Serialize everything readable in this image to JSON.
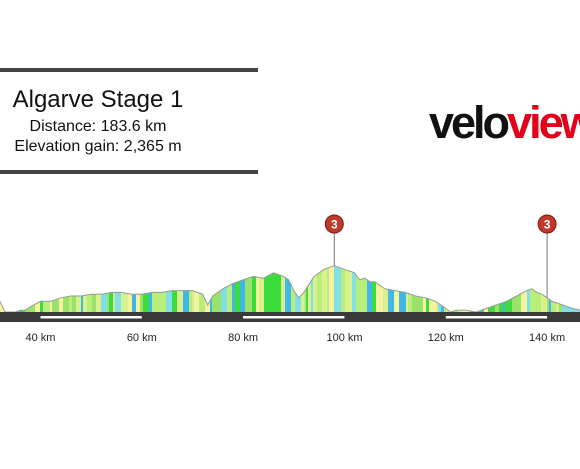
{
  "stage": {
    "title": "Algarve Stage 1",
    "distance": "Distance: 183.6 km",
    "elevation": "Elevation gain: 2,365 m"
  },
  "brand": {
    "part1": "velo",
    "part2": "view",
    "color_dark": "#111111",
    "color_red": "#e3001b"
  },
  "chart_data": {
    "type": "area",
    "title": "",
    "xlabel": "",
    "ylabel": "",
    "x_ticks": [
      40,
      60,
      80,
      100,
      120,
      140
    ],
    "x_tick_labels": [
      "40 km",
      "60 km",
      "80 km",
      "100 km",
      "120 km",
      "140 km"
    ],
    "xlim": [
      32,
      146.5
    ],
    "elevation_profile": {
      "x": [
        32,
        33,
        35,
        36,
        37,
        38,
        40,
        42,
        44,
        46,
        48,
        50,
        52,
        54,
        56,
        58,
        60,
        62,
        64,
        66,
        68,
        70,
        72,
        73,
        74,
        76,
        78,
        80,
        82,
        84,
        86,
        88,
        89,
        90,
        91,
        92,
        94,
        96,
        98,
        100,
        102,
        103,
        104,
        105,
        106,
        107,
        108,
        110,
        112,
        114,
        116,
        118,
        120,
        121,
        122,
        124,
        126,
        128,
        130,
        132,
        134,
        136,
        137,
        138,
        139,
        140,
        141,
        142,
        143,
        144,
        145,
        146.5
      ],
      "y": [
        6,
        0,
        0,
        1,
        1,
        3,
        6,
        6,
        8,
        9,
        9,
        10,
        10,
        11,
        11,
        10,
        10,
        11,
        11,
        12,
        12,
        12,
        10,
        4,
        9,
        13,
        16,
        18,
        20,
        19,
        22,
        20,
        18,
        12,
        8,
        11,
        20,
        24,
        26,
        24,
        22,
        18,
        19,
        17,
        17,
        15,
        13,
        12,
        11,
        9,
        8,
        6,
        2,
        0,
        1,
        1,
        0,
        2,
        4,
        6,
        9,
        12,
        13,
        11,
        10,
        8,
        6,
        5,
        4,
        3,
        2,
        1
      ],
      "ylim": [
        0,
        32
      ]
    },
    "climbs": [
      {
        "label": "3",
        "x": 98,
        "category_color": "#c0392b"
      },
      {
        "label": "3",
        "x": 140,
        "category_color": "#c0392b"
      }
    ],
    "gradient_colors": [
      "#3ddc3d",
      "#9be26a",
      "#d8f08e",
      "#f3f3a0",
      "#7fe0e6",
      "#3fb8e8",
      "#b9ee7a"
    ],
    "fill_color": "#6ddb4f"
  }
}
